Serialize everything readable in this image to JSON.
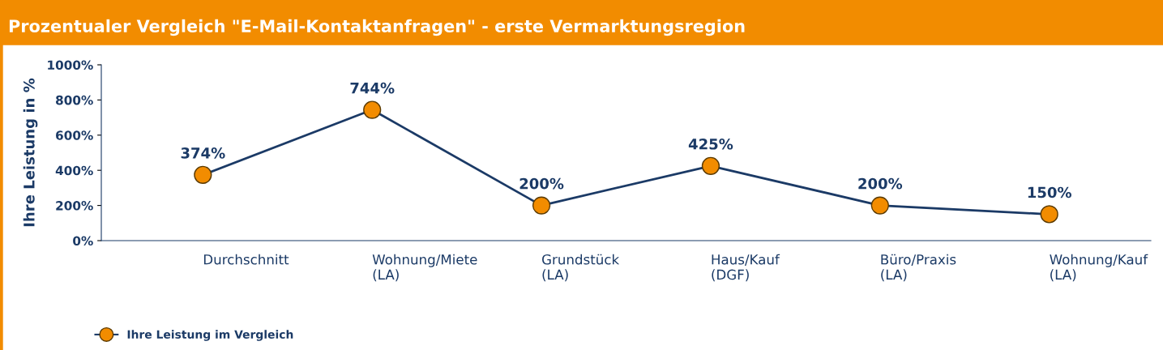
{
  "chart_data": {
    "type": "line",
    "title": "Prozentualer Vergleich \"E-Mail-Kontaktanfragen\" - erste Vermarktungsregion",
    "ylabel": "Ihre Leistung in %",
    "categories": [
      "Durchschnitt",
      "Wohnung/Miete\n(LA)",
      "Grundstück\n(LA)",
      "Haus/Kauf\n(DGF)",
      "Büro/Praxis\n(LA)",
      "Wohnung/Kauf\n(LA)"
    ],
    "series": [
      {
        "name": "Ihre Leistung im Vergleich",
        "color": "#f28c00",
        "values": [
          374,
          744,
          200,
          425,
          200,
          150
        ],
        "value_labels": [
          "374%",
          "744%",
          "200%",
          "425%",
          "200%",
          "150%"
        ]
      }
    ],
    "ylim": [
      0,
      1000
    ],
    "yticks": [
      {
        "value": 0,
        "label": "0%"
      },
      {
        "value": 200,
        "label": "200%"
      },
      {
        "value": 400,
        "label": "400%"
      },
      {
        "value": 600,
        "label": "600%"
      },
      {
        "value": 800,
        "label": "800%"
      },
      {
        "value": 1000,
        "label": "1000%"
      }
    ],
    "grid": false,
    "legend": "bottom left",
    "marker": "circle",
    "line_style": "solid"
  }
}
